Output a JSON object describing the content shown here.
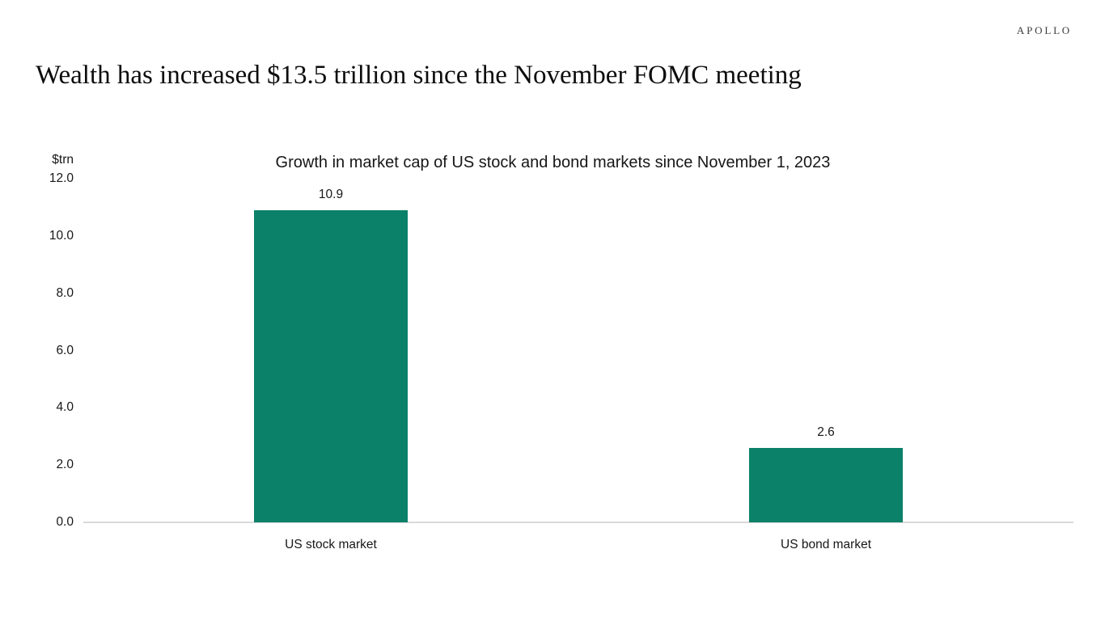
{
  "brand": {
    "logo_text": "APOLLO"
  },
  "page": {
    "title": "Wealth has increased $13.5 trillion since the November FOMC meeting"
  },
  "chart_data": {
    "type": "bar",
    "title": "Growth in market cap of US stock and bond markets since November 1, 2023",
    "unit_label": "$trn",
    "categories": [
      "US stock market",
      "US bond market"
    ],
    "values": [
      10.9,
      2.6
    ],
    "value_labels": [
      "10.9",
      "2.6"
    ],
    "ytick_labels": [
      "0.0",
      "2.0",
      "4.0",
      "6.0",
      "8.0",
      "10.0",
      "12.0"
    ],
    "ylim": [
      0,
      12
    ],
    "bar_color": "#0b8169",
    "axis_line_color": "#d9d9d9",
    "grid": false,
    "legend": "none"
  }
}
